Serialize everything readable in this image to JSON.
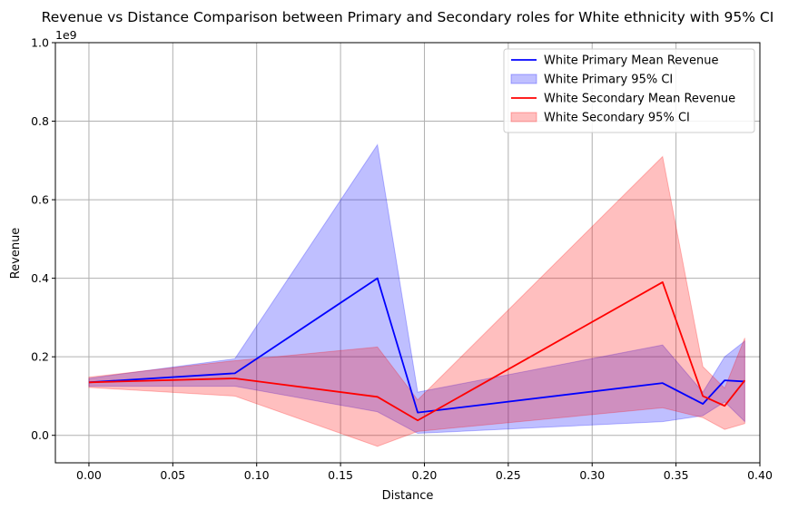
{
  "chart_data": {
    "type": "line",
    "title": "Revenue vs Distance Comparison between Primary and Secondary roles for White ethnicity with 95% CI",
    "xlabel": "Distance",
    "ylabel": "Revenue",
    "y_offset_label": "1e9",
    "xlim": [
      -0.02,
      0.4
    ],
    "ylim": [
      -0.07,
      1.0
    ],
    "x_ticks": [
      0.0,
      0.05,
      0.1,
      0.15,
      0.2,
      0.25,
      0.3,
      0.35,
      0.4
    ],
    "x_tick_labels": [
      "0.00",
      "0.05",
      "0.10",
      "0.15",
      "0.20",
      "0.25",
      "0.30",
      "0.35",
      "0.40"
    ],
    "y_ticks": [
      0.0,
      0.2,
      0.4,
      0.6,
      0.8,
      1.0
    ],
    "y_tick_labels": [
      "0.0",
      "0.2",
      "0.4",
      "0.6",
      "0.8",
      "1.0"
    ],
    "grid": true,
    "legend_position": "top-right",
    "series": [
      {
        "name": "White Primary Mean Revenue",
        "ci_name": "White Primary 95% CI",
        "color": "#0000ff",
        "fill_color": "#0000ff",
        "x": [
          0.0,
          0.087,
          0.172,
          0.196,
          0.342,
          0.366,
          0.379,
          0.391
        ],
        "y": [
          0.135,
          0.158,
          0.4,
          0.058,
          0.133,
          0.08,
          0.14,
          0.137
        ],
        "ci_lower": [
          0.125,
          0.125,
          0.06,
          0.005,
          0.035,
          0.05,
          0.085,
          0.035
        ],
        "ci_upper": [
          0.145,
          0.195,
          0.74,
          0.11,
          0.23,
          0.11,
          0.2,
          0.24
        ]
      },
      {
        "name": "White Secondary Mean Revenue",
        "ci_name": "White Secondary 95% CI",
        "color": "#ff0000",
        "fill_color": "#ff0000",
        "x": [
          0.0,
          0.087,
          0.172,
          0.196,
          0.342,
          0.366,
          0.379,
          0.391
        ],
        "y": [
          0.135,
          0.145,
          0.098,
          0.038,
          0.39,
          0.1,
          0.075,
          0.14
        ],
        "ci_lower": [
          0.122,
          0.1,
          -0.028,
          0.01,
          0.07,
          0.045,
          0.015,
          0.03
        ],
        "ci_upper": [
          0.148,
          0.19,
          0.225,
          0.09,
          0.71,
          0.175,
          0.12,
          0.248
        ]
      }
    ]
  }
}
